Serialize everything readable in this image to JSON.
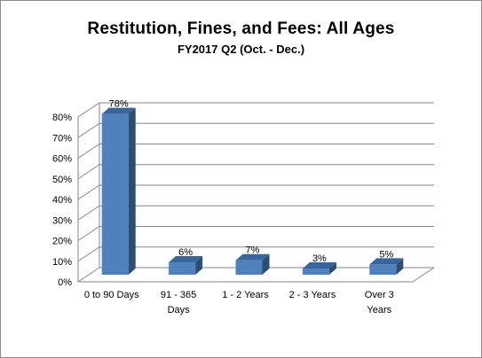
{
  "chart_data": {
    "type": "bar",
    "title": "Restitution,  Fines, and Fees: All Ages",
    "subtitle": "FY2017 Q2 (Oct. - Dec.)",
    "categories": [
      [
        "0 to 90 Days"
      ],
      [
        "91 - 365",
        "Days"
      ],
      [
        "1 - 2 Years"
      ],
      [
        "2 - 3 Years"
      ],
      [
        "Over 3",
        "Years"
      ]
    ],
    "values": [
      78,
      6,
      7,
      3,
      5
    ],
    "data_labels": [
      "78%",
      "6%",
      "7%",
      "3%",
      "5%"
    ],
    "ylim": [
      0,
      80
    ],
    "yticks": [
      "0%",
      "10%",
      "20%",
      "30%",
      "40%",
      "50%",
      "60%",
      "70%",
      "80%"
    ],
    "grid": true,
    "style": "3d-column",
    "colors": {
      "bar_front": "#4f81bd",
      "bar_side": "#2c4d75",
      "bar_top": "#3a659c",
      "grid": "#868686"
    }
  }
}
